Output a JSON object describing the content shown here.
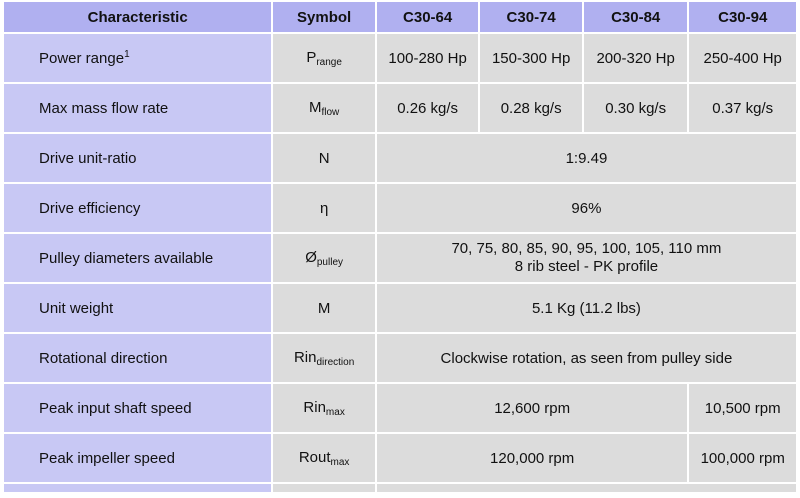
{
  "headers": [
    "Characteristic",
    "Symbol",
    "C30-64",
    "C30-74",
    "C30-84",
    "C30-94"
  ],
  "rows": {
    "power": {
      "label": "Power range",
      "label_sup": "1",
      "sym": "P",
      "sym_sub": "range",
      "values": [
        "100-280 Hp",
        "150-300 Hp",
        "200-320 Hp",
        "250-400 Hp"
      ]
    },
    "mass_flow": {
      "label": "Max mass flow rate",
      "sym": "M",
      "sym_sub": "flow",
      "values": [
        "0.26 kg/s",
        "0.28 kg/s",
        "0.30 kg/s",
        "0.37 kg/s"
      ]
    },
    "ratio": {
      "label": "Drive unit-ratio",
      "sym": "N",
      "value": "1:9.49"
    },
    "efficiency": {
      "label": "Drive efficiency",
      "sym": "η",
      "value": "96%"
    },
    "pulley": {
      "label": "Pulley diameters available",
      "sym": "Ø",
      "sym_sub": "pulley",
      "value_line1": "70, 75, 80, 85, 90, 95, 100, 105, 110 mm",
      "value_line2": "8 rib steel - PK profile"
    },
    "weight": {
      "label": "Unit weight",
      "sym": "M",
      "value": "5.1 Kg (11.2 lbs)"
    },
    "rotation": {
      "label": "Rotational direction",
      "sym": "Rin",
      "sym_sub": "direction",
      "value": "Clockwise rotation, as seen from pulley side"
    },
    "input_speed": {
      "label": "Peak input shaft speed",
      "sym": "Rin",
      "sym_sub": "max",
      "value_main": "12,600 rpm",
      "value_last": "10,500 rpm"
    },
    "impeller_speed": {
      "label": "Peak impeller speed",
      "sym": "Rout",
      "sym_sub": "max",
      "value_main": "120,000 rpm",
      "value_last": "100,000 rpm"
    }
  }
}
